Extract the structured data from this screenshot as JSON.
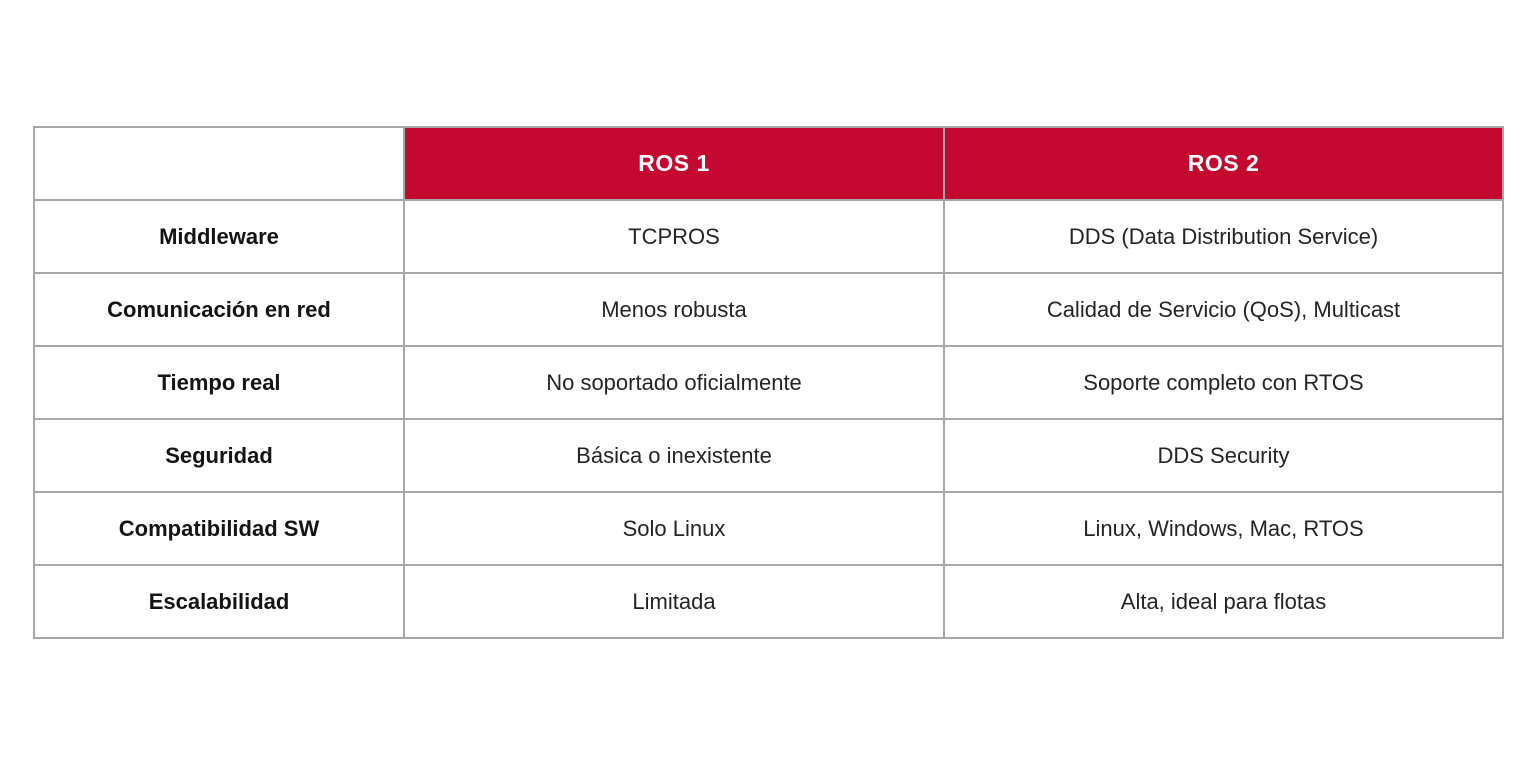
{
  "colors": {
    "header_bg": "#c4082f",
    "header_text": "#ffffff",
    "border": "#a7a7a7",
    "label_text": "#141414",
    "value_text": "#242424",
    "page_bg": "#ffffff"
  },
  "table": {
    "header": {
      "ros1": "ROS 1",
      "ros2": "ROS 2"
    },
    "rows": [
      {
        "label": "Middleware",
        "ros1": "TCPROS",
        "ros2": "DDS (Data Distribution Service)"
      },
      {
        "label": "Comunicación en red",
        "ros1": "Menos robusta",
        "ros2": "Calidad de Servicio (QoS), Multicast"
      },
      {
        "label": "Tiempo real",
        "ros1": "No soportado oficialmente",
        "ros2": "Soporte completo con RTOS"
      },
      {
        "label": "Seguridad",
        "ros1": "Básica o inexistente",
        "ros2": "DDS Security"
      },
      {
        "label": "Compatibilidad SW",
        "ros1": "Solo Linux",
        "ros2": "Linux, Windows, Mac, RTOS"
      },
      {
        "label": "Escalabilidad",
        "ros1": "Limitada",
        "ros2": "Alta, ideal para flotas"
      }
    ]
  }
}
